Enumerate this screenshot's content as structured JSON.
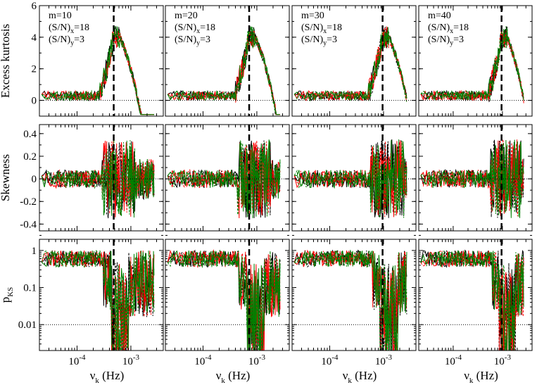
{
  "figure": {
    "x_axis_label": "ν",
    "x_axis_label_sub": "k",
    "x_axis_unit": "(Hz)",
    "x_ticks": [
      {
        "mant": "10",
        "exp": "-4"
      },
      {
        "mant": "10",
        "exp": "-3"
      }
    ],
    "row_labels": [
      "Excess kurtosis",
      "Skewness",
      "p"
    ],
    "row_label_sub": [
      "",
      "",
      "KS"
    ],
    "columns": [
      {
        "m": "m=10",
        "sn_x": "(S/N)",
        "sn_x_sub": "x",
        "sn_x_val": "=18",
        "sn_y": "(S/N)",
        "sn_y_sub": "y",
        "sn_y_val": "=3",
        "vline_hz": 0.00048
      },
      {
        "m": "m=20",
        "sn_x": "(S/N)",
        "sn_x_sub": "x",
        "sn_x_val": "=18",
        "sn_y": "(S/N)",
        "sn_y_sub": "y",
        "sn_y_val": "=3",
        "vline_hz": 0.00072
      },
      {
        "m": "m=30",
        "sn_x": "(S/N)",
        "sn_x_sub": "x",
        "sn_x_val": "=18",
        "sn_y": "(S/N)",
        "sn_y_sub": "y",
        "sn_y_val": "=3",
        "vline_hz": 0.00096
      },
      {
        "m": "m=40",
        "sn_x": "(S/N)",
        "sn_x_sub": "x",
        "sn_x_val": "=18",
        "sn_y": "(S/N)",
        "sn_y_sub": "y",
        "sn_y_val": "=3",
        "vline_hz": 0.00096
      }
    ]
  },
  "chart_data": {
    "type": "line",
    "layout": "grid 3 rows x 4 columns",
    "x_scale": "log",
    "xlim_hz": [
      2e-05,
      0.004
    ],
    "x_tick_labels": [
      "10^-4",
      "10^-3"
    ],
    "series_colors": [
      "#000000",
      "#ff0000",
      "#008000"
    ],
    "series_styles": [
      "solid",
      "dashed"
    ],
    "rows": [
      {
        "quantity": "Excess kurtosis",
        "y_scale": "linear",
        "ylim": [
          -1,
          6
        ],
        "y_ticks": [
          0,
          2,
          4,
          6
        ],
        "y_tick_labels": [
          "0",
          "2",
          "4",
          "6"
        ],
        "reference_line": 0,
        "profile": "kurtosis"
      },
      {
        "quantity": "Skewness",
        "y_scale": "linear",
        "ylim": [
          -0.46,
          0.48
        ],
        "y_ticks": [
          -0.4,
          -0.2,
          0,
          0.2,
          0.4
        ],
        "y_tick_labels": [
          "-0.4",
          "-0.2",
          "0",
          "0.2",
          "0.4"
        ],
        "reference_line": 0,
        "profile": "skewness"
      },
      {
        "quantity": "pKS",
        "y_scale": "log",
        "ylim": [
          0.002,
          2
        ],
        "y_ticks": [
          0.01,
          0.1,
          1
        ],
        "y_tick_labels": [
          "0.01",
          "0.1",
          "1"
        ],
        "reference_line": 0.01,
        "profile": "pks"
      }
    ],
    "columns": [
      {
        "m": 10,
        "sn_x": 18,
        "sn_y": 3,
        "vline_hz": 0.00048
      },
      {
        "m": 20,
        "sn_x": 18,
        "sn_y": 3,
        "vline_hz": 0.00072
      },
      {
        "m": 30,
        "sn_x": 18,
        "sn_y": 3,
        "vline_hz": 0.00096
      },
      {
        "m": 40,
        "sn_x": 18,
        "sn_y": 3,
        "vline_hz": 0.00096
      }
    ]
  }
}
